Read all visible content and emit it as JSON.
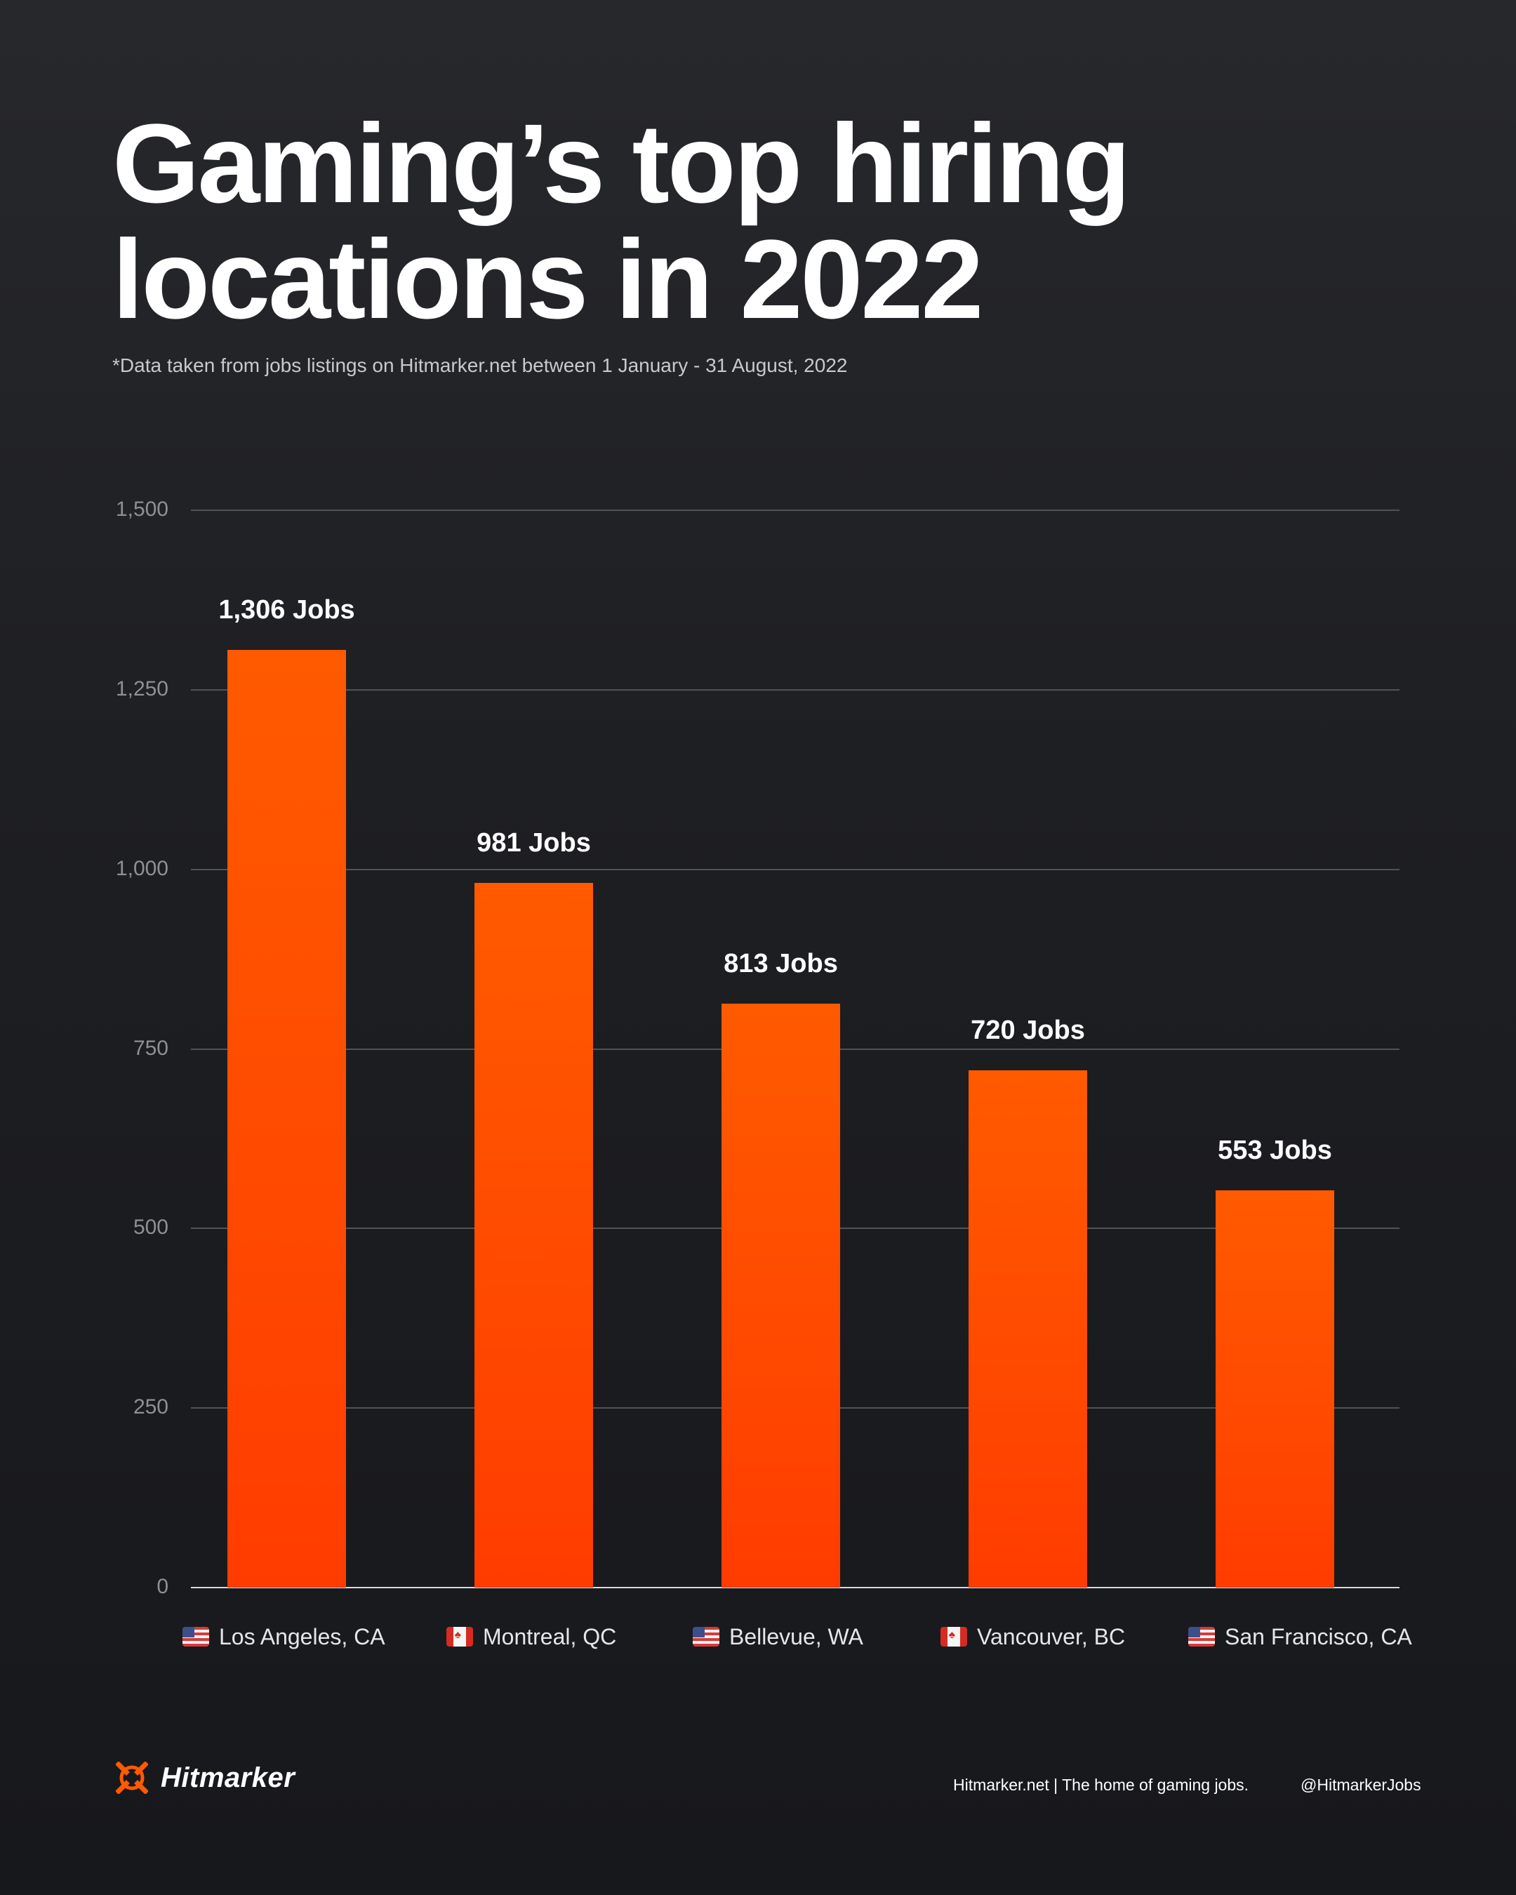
{
  "header": {
    "title_line1": "Gaming’s top hiring",
    "title_line2": "locations in 2022",
    "subtitle": "*Data taken from jobs listings on Hitmarker.net between 1 January - 31 August, 2022"
  },
  "chart": {
    "y_ticks": [
      "1,500",
      "1,250",
      "1,000",
      "750",
      "500",
      "250",
      "0"
    ],
    "bars": [
      {
        "label": "1,306 Jobs",
        "location": "Los Angeles, CA",
        "flag": "us-flag-icon"
      },
      {
        "label": "981 Jobs",
        "location": "Montreal, QC",
        "flag": "canada-flag-icon"
      },
      {
        "label": "813 Jobs",
        "location": "Bellevue, WA",
        "flag": "us-flag-icon"
      },
      {
        "label": "720 Jobs",
        "location": "Vancouver, BC",
        "flag": "canada-flag-icon"
      },
      {
        "label": "553 Jobs",
        "location": "San Francisco, CA",
        "flag": "us-flag-icon"
      }
    ],
    "bar_color": "#ff5000"
  },
  "footer": {
    "brand": "Hitmarker",
    "tagline": "Hitmarker.net | The home of gaming jobs.",
    "handle": "@HitmarkerJobs",
    "brand_color": "#ff5a00"
  },
  "chart_data": {
    "type": "bar",
    "title": "Gaming’s top hiring locations in 2022",
    "subtitle": "*Data taken from jobs listings on Hitmarker.net between 1 January - 31 August, 2022",
    "categories": [
      "Los Angeles, CA",
      "Montreal, QC",
      "Bellevue, WA",
      "Vancouver, BC",
      "San Francisco, CA"
    ],
    "values": [
      1306,
      981,
      813,
      720,
      553
    ],
    "data_labels": [
      "1,306 Jobs",
      "981 Jobs",
      "813 Jobs",
      "720 Jobs",
      "553 Jobs"
    ],
    "xlabel": "",
    "ylabel": "",
    "ylim": [
      0,
      1500
    ],
    "yticks": [
      0,
      250,
      500,
      750,
      1000,
      1250,
      1500
    ],
    "grid": true,
    "legend": null,
    "color": "#ff5000"
  }
}
